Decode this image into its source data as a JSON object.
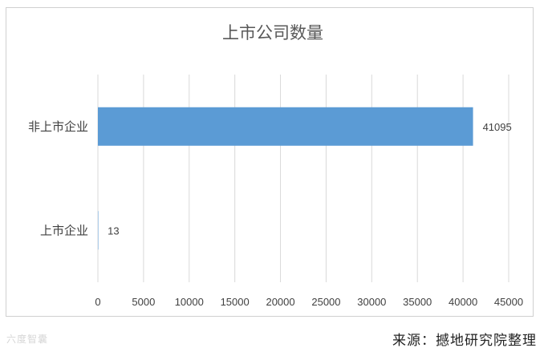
{
  "chart_data": {
    "type": "bar",
    "orientation": "horizontal",
    "title": "上市公司数量",
    "categories": [
      "非上市企业",
      "上市企业"
    ],
    "values": [
      41095,
      13
    ],
    "value_labels": [
      "41095",
      "13"
    ],
    "xlim": [
      0,
      45000
    ],
    "x_ticks": [
      0,
      5000,
      10000,
      15000,
      20000,
      25000,
      30000,
      35000,
      40000,
      45000
    ],
    "grid": "vertical",
    "bar_color": "#5b9bd5",
    "legend": "none"
  },
  "footer": {
    "watermark": "六度智囊",
    "source": "来源：撼地研究院整理"
  }
}
